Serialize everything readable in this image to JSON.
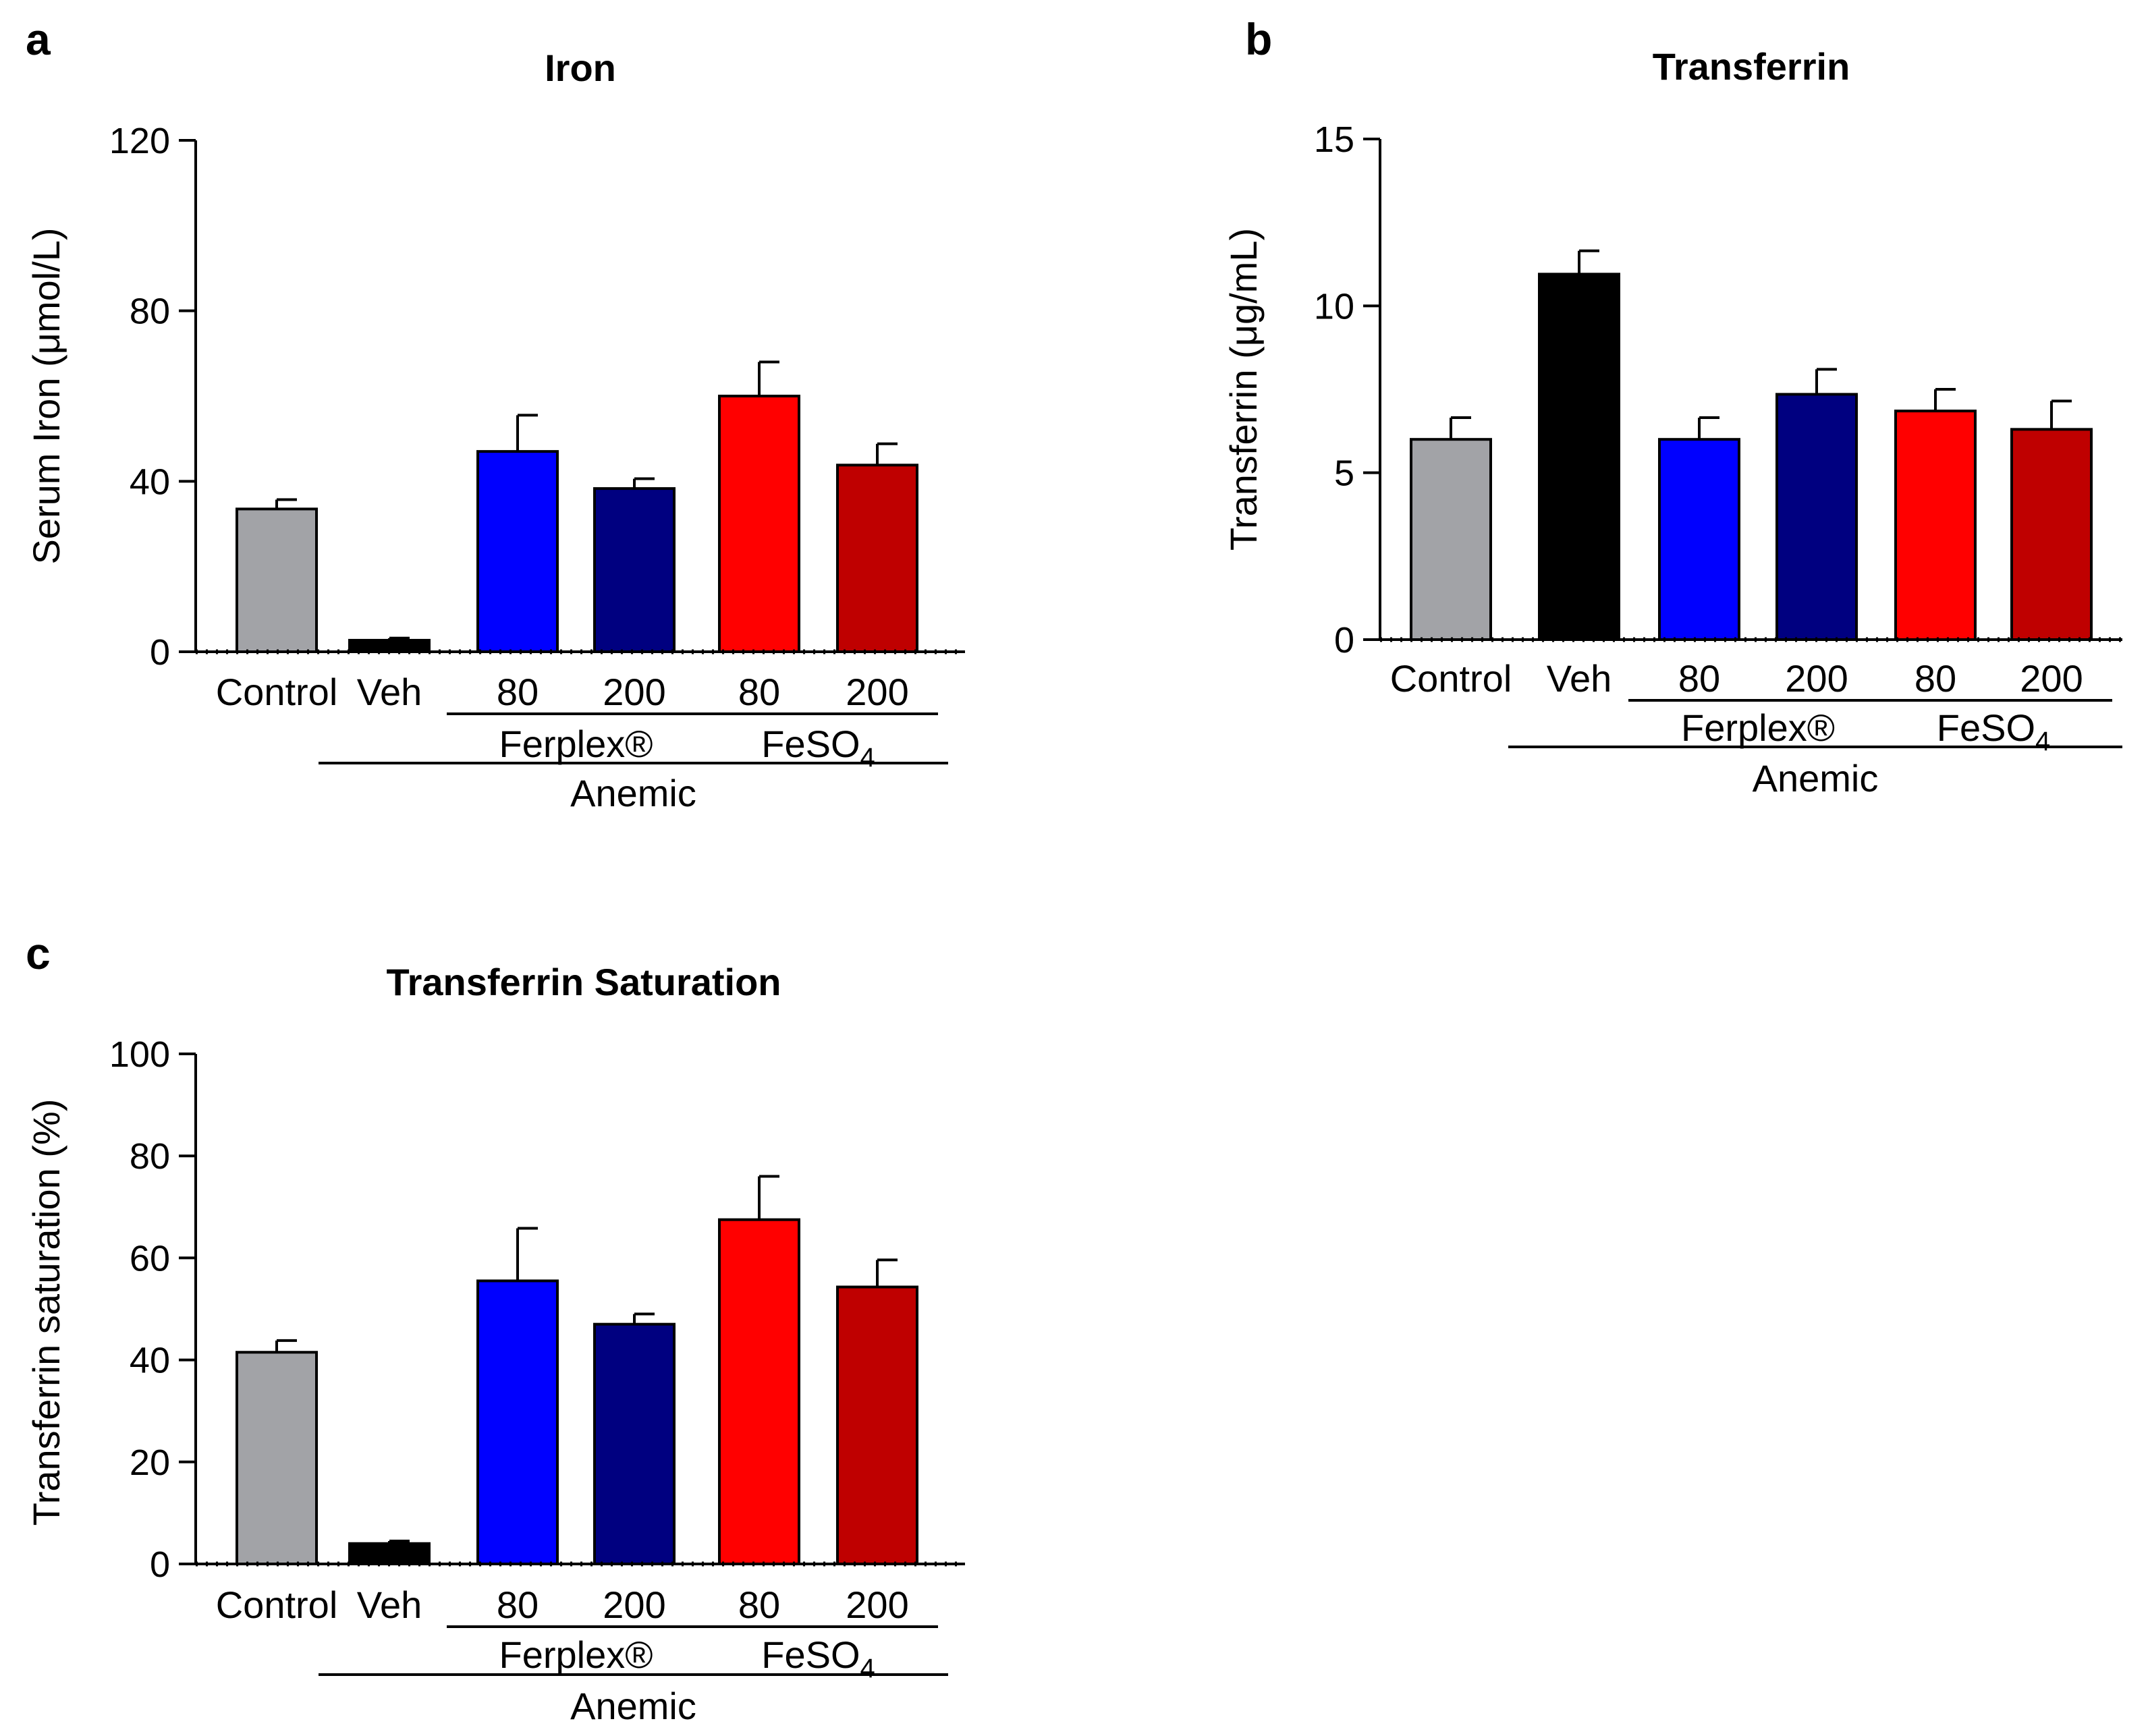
{
  "chart_data": [
    {
      "panel": "a",
      "type": "bar",
      "title": "Iron",
      "ylabel": "Serum Iron (μmol/L)",
      "xlabel": "",
      "ylim": [
        0,
        120
      ],
      "yticks": [
        "0",
        "40",
        "80",
        "120"
      ],
      "categories": [
        "Control",
        "Veh",
        "80",
        "200",
        "80",
        "200"
      ],
      "values": [
        33.5,
        2.7,
        47,
        38.3,
        60,
        43.8
      ],
      "errors": [
        2.2,
        0.5,
        8.5,
        2.3,
        8,
        5
      ],
      "colors": [
        "#a2a3a7",
        "#000000",
        "#0000ff",
        "#000080",
        "#ff0000",
        "#bf0000"
      ],
      "groups": [
        {
          "label": "Ferplex®",
          "from": 2,
          "to": 3
        },
        {
          "label": "FeSO",
          "sub": "4",
          "from": 4,
          "to": 5
        },
        {
          "label": "Anemic",
          "from": 1,
          "to": 5,
          "level": 2
        }
      ]
    },
    {
      "panel": "b",
      "type": "bar",
      "title": "Transferrin",
      "ylabel": "Transferrin (μg/mL)",
      "xlabel": "",
      "ylim": [
        0,
        15
      ],
      "yticks": [
        "0",
        "5",
        "10",
        "15"
      ],
      "categories": [
        "Control",
        "Veh",
        "80",
        "200",
        "80",
        "200"
      ],
      "values": [
        6.0,
        10.95,
        6.0,
        7.35,
        6.85,
        6.3
      ],
      "errors": [
        0.65,
        0.7,
        0.65,
        0.75,
        0.65,
        0.85
      ],
      "colors": [
        "#a2a3a7",
        "#000000",
        "#0000ff",
        "#000080",
        "#ff0000",
        "#bf0000"
      ],
      "groups": [
        {
          "label": "Ferplex®",
          "from": 2,
          "to": 3
        },
        {
          "label": "FeSO",
          "sub": "4",
          "from": 4,
          "to": 5
        },
        {
          "label": "Anemic",
          "from": 1,
          "to": 5,
          "level": 2
        }
      ]
    },
    {
      "panel": "c",
      "type": "bar",
      "title": "Transferrin Saturation",
      "ylabel": "Transferrin saturation (%)",
      "xlabel": "",
      "ylim": [
        0,
        100
      ],
      "yticks": [
        "0",
        "20",
        "40",
        "60",
        "80",
        "100"
      ],
      "categories": [
        "Control",
        "Veh",
        "80",
        "200",
        "80",
        "200"
      ],
      "values": [
        41.5,
        4.0,
        55.5,
        47.0,
        67.5,
        54.3
      ],
      "errors": [
        2.3,
        0.5,
        10.3,
        2.0,
        8.5,
        5.3
      ],
      "colors": [
        "#a2a3a7",
        "#000000",
        "#0000ff",
        "#000080",
        "#ff0000",
        "#bf0000"
      ],
      "groups": [
        {
          "label": "Ferplex®",
          "from": 2,
          "to": 3
        },
        {
          "label": "FeSO",
          "sub": "4",
          "from": 4,
          "to": 5
        },
        {
          "label": "Anemic",
          "from": 1,
          "to": 5,
          "level": 2
        }
      ]
    }
  ]
}
